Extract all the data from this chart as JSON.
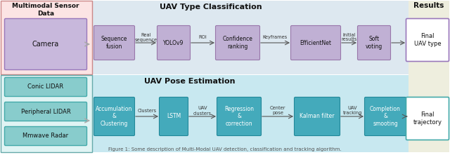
{
  "fig_width": 6.4,
  "fig_height": 2.21,
  "dpi": 100,
  "bg_color": "#ffffff",
  "caption": "Figure 1: Some description of Multi-Modal UAV detection, classification and tracking algorithm.",
  "title_top": "UAV Type Classification",
  "title_bottom": "UAV Pose Estimation",
  "results_title": "Results",
  "left_title": "Multimodal Sensor\nData",
  "camera_label": "Camera",
  "lidar_labels": [
    "Conic LIDAR",
    "Peripheral LIDAR",
    "Mmwave Radar"
  ],
  "top_flow_boxes": [
    {
      "label": "Sequence\nfusion"
    },
    {
      "label": "YOLOv9"
    },
    {
      "label": "Confidence\nranking"
    },
    {
      "label": "EfficientNet"
    },
    {
      "label": "Soft\nvoting"
    }
  ],
  "top_arrow_labels": [
    "Real\nsequence",
    "ROI",
    "Keyframes",
    "Initial\nresults"
  ],
  "bottom_flow_boxes": [
    {
      "label": "Accumulation\n&\nClustering"
    },
    {
      "label": "LSTM"
    },
    {
      "label": "Regression\n&\ncorrection"
    },
    {
      "label": "Kalman filter"
    },
    {
      "label": "Completion\n&\nsmooting"
    }
  ],
  "bottom_arrow_labels": [
    "Clusters",
    "UAV\nclusters",
    "Center\npose",
    "UAV\ntracking"
  ],
  "final_top_label": "Final\nUAV type",
  "final_bottom_label": "Final\ntrajectory",
  "colors": {
    "left_top_bg": "#fce4e4",
    "left_top_border": "#cc8888",
    "left_bot_bg": "#e0f4f4",
    "left_bot_border": "#66aaaa",
    "top_section_bg": "#dde8f0",
    "bot_section_bg": "#c8e8f0",
    "results_bg": "#eeeede",
    "camera_fill": "#c8b8dc",
    "camera_border": "#9977bb",
    "lidar_fill": "#88cccc",
    "lidar_border": "#44aaaa",
    "top_box_fill": "#c0b0d4",
    "top_box_border": "#9977aa",
    "bot_box_fill": "#44aabb",
    "bot_box_border": "#228899",
    "final_top_fill": "#ffffff",
    "final_top_border": "#9977bb",
    "final_bot_fill": "#ffffff",
    "final_bot_border": "#44aaaa",
    "arrow_color": "#555555",
    "text_dark": "#111111",
    "text_white": "#ffffff",
    "text_arrow": "#333333"
  }
}
